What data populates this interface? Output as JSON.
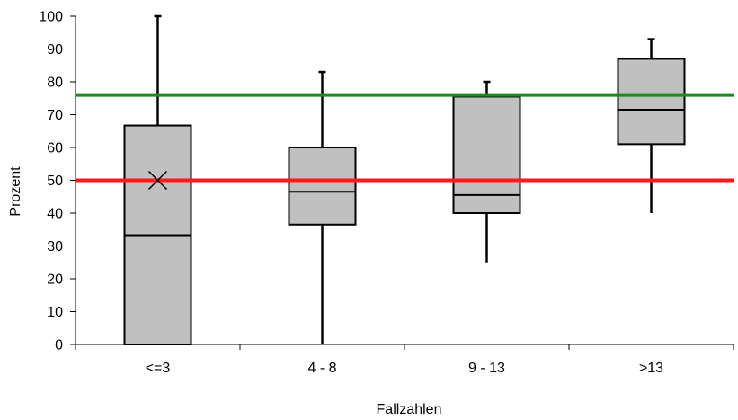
{
  "chart_data": {
    "type": "boxplot",
    "title": "",
    "xlabel": "Fallzahlen",
    "ylabel": "Prozent",
    "ylim": [
      0,
      100
    ],
    "yticks": [
      0,
      10,
      20,
      30,
      40,
      50,
      60,
      70,
      80,
      90,
      100
    ],
    "categories": [
      "<=3",
      "4 - 8",
      "9 - 13",
      ">13"
    ],
    "boxes": [
      {
        "category": "<=3",
        "min": 0,
        "q1": 0,
        "median": 33.3,
        "q3": 66.7,
        "max": 100,
        "mean": 50
      },
      {
        "category": "4 - 8",
        "min": 0,
        "q1": 36.5,
        "median": 46.5,
        "q3": 60,
        "max": 83
      },
      {
        "category": "9 - 13",
        "min": 25,
        "q1": 40,
        "median": 45.5,
        "q3": 75.5,
        "max": 80
      },
      {
        "category": ">13",
        "min": 40,
        "q1": 61,
        "median": 71.5,
        "q3": 87,
        "max": 93
      }
    ],
    "reference_lines": [
      {
        "value": 76,
        "color": "#1f8a1f"
      },
      {
        "value": 50,
        "color": "#ff1a1a"
      }
    ],
    "box_fill": "#c0c0c0",
    "grid": false
  }
}
